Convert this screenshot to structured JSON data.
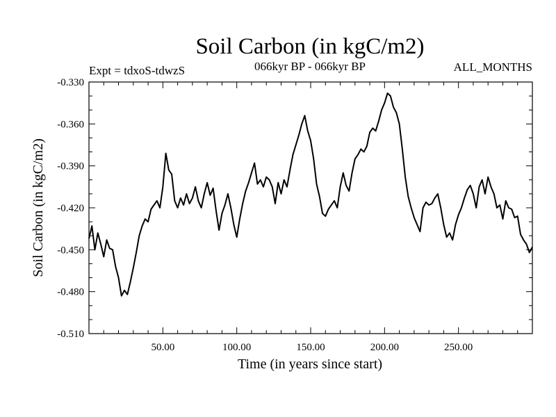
{
  "chart_data": {
    "type": "line",
    "title": "Soil Carbon (in kgC/m2)",
    "subtitle_left": "Expt = tdxoS-tdwzS",
    "subtitle_center": "066kyr BP - 066kyr BP",
    "subtitle_right": "ALL_MONTHS",
    "xlabel": "Time (in years since start)",
    "ylabel": "Soil Carbon (in kgC/m2)",
    "xlim": [
      0,
      300
    ],
    "ylim": [
      -0.51,
      -0.33
    ],
    "x_ticks": [
      50,
      100,
      150,
      200,
      250
    ],
    "x_tick_labels": [
      "50.00",
      "100.00",
      "150.00",
      "200.00",
      "250.00"
    ],
    "y_ticks": [
      -0.33,
      -0.36,
      -0.39,
      -0.42,
      -0.45,
      -0.48,
      -0.51
    ],
    "y_tick_labels": [
      "-0.330",
      "-0.360",
      "-0.390",
      "-0.420",
      "-0.450",
      "-0.480",
      "-0.510"
    ],
    "grid": false,
    "line_color": "#000000",
    "series": [
      {
        "x": [
          0,
          2,
          4,
          6,
          8,
          10,
          12,
          14,
          16,
          18,
          20,
          22,
          24,
          26,
          28,
          30,
          32,
          34,
          36,
          38,
          40,
          42,
          44,
          46,
          48,
          50,
          52,
          54,
          56,
          58,
          60,
          62,
          64,
          66,
          68,
          70,
          72,
          74,
          76,
          78,
          80,
          82,
          84,
          86,
          88,
          90,
          92,
          94,
          96,
          98,
          100,
          102,
          104,
          106,
          108,
          110,
          112,
          114,
          116,
          118,
          120,
          122,
          124,
          126,
          128,
          130,
          132,
          134,
          136,
          138,
          140,
          142,
          144,
          146,
          148,
          150,
          152,
          154,
          156,
          158,
          160,
          162,
          164,
          166,
          168,
          170,
          172,
          174,
          176,
          178,
          180,
          182,
          184,
          186,
          188,
          190,
          192,
          194,
          196,
          198,
          200,
          202,
          204,
          206,
          208,
          210,
          212,
          214,
          216,
          218,
          220,
          222,
          224,
          226,
          228,
          230,
          232,
          234,
          236,
          238,
          240,
          242,
          244,
          246,
          248,
          250,
          252,
          254,
          256,
          258,
          260,
          262,
          264,
          266,
          268,
          270,
          272,
          274,
          276,
          278,
          280,
          282,
          284,
          286,
          288,
          290,
          292,
          294,
          296,
          298,
          300
        ],
        "y": [
          -0.442,
          -0.433,
          -0.45,
          -0.438,
          -0.446,
          -0.455,
          -0.443,
          -0.449,
          -0.45,
          -0.462,
          -0.47,
          -0.483,
          -0.479,
          -0.482,
          -0.473,
          -0.463,
          -0.452,
          -0.44,
          -0.433,
          -0.428,
          -0.43,
          -0.421,
          -0.418,
          -0.415,
          -0.42,
          -0.405,
          -0.381,
          -0.393,
          -0.396,
          -0.415,
          -0.42,
          -0.413,
          -0.418,
          -0.41,
          -0.417,
          -0.413,
          -0.405,
          -0.415,
          -0.42,
          -0.41,
          -0.402,
          -0.411,
          -0.406,
          -0.422,
          -0.436,
          -0.424,
          -0.418,
          -0.41,
          -0.42,
          -0.432,
          -0.441,
          -0.428,
          -0.417,
          -0.408,
          -0.402,
          -0.395,
          -0.388,
          -0.403,
          -0.4,
          -0.405,
          -0.398,
          -0.4,
          -0.405,
          -0.417,
          -0.402,
          -0.41,
          -0.4,
          -0.405,
          -0.393,
          -0.382,
          -0.375,
          -0.368,
          -0.36,
          -0.354,
          -0.365,
          -0.372,
          -0.385,
          -0.403,
          -0.412,
          -0.424,
          -0.426,
          -0.421,
          -0.418,
          -0.415,
          -0.42,
          -0.405,
          -0.395,
          -0.404,
          -0.408,
          -0.395,
          -0.385,
          -0.382,
          -0.378,
          -0.38,
          -0.376,
          -0.366,
          -0.363,
          -0.365,
          -0.358,
          -0.35,
          -0.345,
          -0.338,
          -0.34,
          -0.348,
          -0.352,
          -0.36,
          -0.378,
          -0.398,
          -0.412,
          -0.42,
          -0.427,
          -0.432,
          -0.437,
          -0.42,
          -0.416,
          -0.418,
          -0.417,
          -0.413,
          -0.41,
          -0.42,
          -0.432,
          -0.441,
          -0.438,
          -0.443,
          -0.432,
          -0.425,
          -0.42,
          -0.413,
          -0.407,
          -0.404,
          -0.41,
          -0.42,
          -0.405,
          -0.4,
          -0.41,
          -0.398,
          -0.405,
          -0.41,
          -0.42,
          -0.418,
          -0.428,
          -0.415,
          -0.42,
          -0.421,
          -0.427,
          -0.426,
          -0.439,
          -0.443,
          -0.446,
          -0.452,
          -0.448
        ]
      }
    ]
  }
}
